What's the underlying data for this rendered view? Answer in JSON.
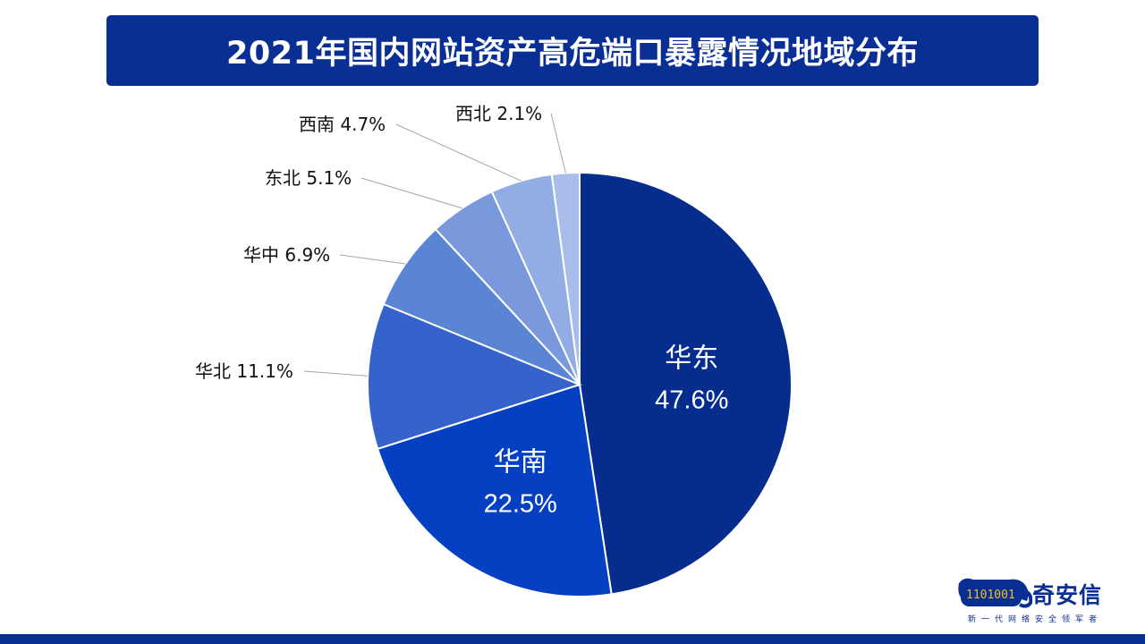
{
  "chart_data": {
    "type": "pie",
    "title": "2021年国内网站资产高危端口暴露情况地域分布",
    "slices": [
      {
        "label": "华东",
        "value": 47.6,
        "display": "47.6%",
        "color": "#062c8e",
        "label_inside": true
      },
      {
        "label": "华南",
        "value": 22.5,
        "display": "22.5%",
        "color": "#0540c2",
        "label_inside": true
      },
      {
        "label": "华北",
        "value": 11.1,
        "display": "11.1%",
        "color": "#3663cb",
        "label_inside": false
      },
      {
        "label": "华中",
        "value": 6.9,
        "display": "6.9%",
        "color": "#5a84d4",
        "label_inside": false
      },
      {
        "label": "东北",
        "value": 5.1,
        "display": "5.1%",
        "color": "#7a99dc",
        "label_inside": false
      },
      {
        "label": "西南",
        "value": 4.7,
        "display": "4.7%",
        "color": "#91ade3",
        "label_inside": false
      },
      {
        "label": "西北",
        "value": 2.1,
        "display": "2.1%",
        "color": "#a9bdea",
        "label_inside": false
      }
    ]
  },
  "logo": {
    "brand": "奇安信",
    "slogan": "新一代网络安全领军者",
    "mark_text": "1101001",
    "color": "#0a2f94"
  }
}
